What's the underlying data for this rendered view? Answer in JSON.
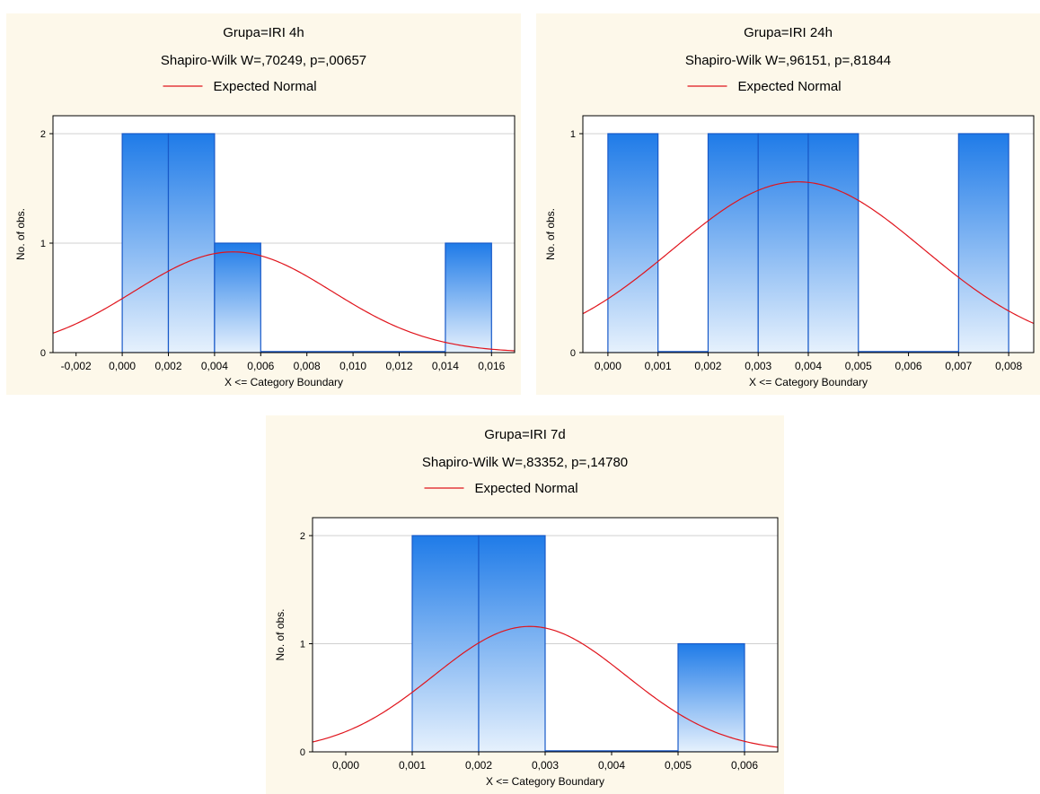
{
  "colors": {
    "panel_bg": "#fdf8ea",
    "bar_top": "#1f7be8",
    "bar_bottom": "#e6f1fd",
    "bar_stroke": "#1859c8",
    "curve": "#e0141c",
    "grid": "#d0d0d0"
  },
  "chart_data": [
    {
      "type": "bar",
      "title": "Grupa=IRI 4h",
      "subtitle": "Shapiro-Wilk W=,70249, p=,00657",
      "legend": "Expected Normal",
      "xlabel": "X <= Category Boundary",
      "ylabel": "No. of obs.",
      "xlim": [
        -0.003,
        0.017
      ],
      "ylim": [
        0,
        2
      ],
      "xticks": [
        -0.002,
        0.0,
        0.002,
        0.004,
        0.006,
        0.008,
        0.01,
        0.012,
        0.014,
        0.016
      ],
      "xtick_labels": [
        "-0,002",
        "0,000",
        "0,002",
        "0,004",
        "0,006",
        "0,008",
        "0,010",
        "0,012",
        "0,014",
        "0,016"
      ],
      "yticks": [
        0,
        1,
        2
      ],
      "ytick_labels": [
        "0",
        "1",
        "2"
      ],
      "bin_edges": [
        0.0,
        0.002,
        0.004,
        0.006,
        0.008,
        0.01,
        0.012,
        0.014,
        0.016
      ],
      "counts": [
        2,
        2,
        1,
        0,
        0,
        0,
        0,
        1
      ],
      "normal_curve": {
        "mean": 0.0048,
        "sd": 0.0043,
        "peak": 0.92
      }
    },
    {
      "type": "bar",
      "title": "Grupa=IRI 24h",
      "subtitle": "Shapiro-Wilk W=,96151, p=,81844",
      "legend": "Expected Normal",
      "xlabel": "X <= Category Boundary",
      "ylabel": "No. of obs.",
      "xlim": [
        -0.0005,
        0.0085
      ],
      "ylim": [
        0,
        1
      ],
      "xticks": [
        0.0,
        0.001,
        0.002,
        0.003,
        0.004,
        0.005,
        0.006,
        0.007,
        0.008
      ],
      "xtick_labels": [
        "0,000",
        "0,001",
        "0,002",
        "0,003",
        "0,004",
        "0,005",
        "0,006",
        "0,007",
        "0,008"
      ],
      "yticks": [
        0,
        1
      ],
      "ytick_labels": [
        "0",
        "1"
      ],
      "bin_edges": [
        0.0,
        0.001,
        0.002,
        0.003,
        0.004,
        0.005,
        0.006,
        0.007,
        0.008
      ],
      "counts": [
        1,
        0,
        1,
        1,
        1,
        0,
        0,
        1
      ],
      "normal_curve": {
        "mean": 0.0038,
        "sd": 0.0025,
        "peak": 0.78
      }
    },
    {
      "type": "bar",
      "title": "Grupa=IRI 7d",
      "subtitle": "Shapiro-Wilk W=,83352, p=,14780",
      "legend": "Expected Normal",
      "xlabel": "X <= Category Boundary",
      "ylabel": "No. of obs.",
      "xlim": [
        -0.0005,
        0.0065
      ],
      "ylim": [
        0,
        2
      ],
      "xticks": [
        0.0,
        0.001,
        0.002,
        0.003,
        0.004,
        0.005,
        0.006
      ],
      "xtick_labels": [
        "0,000",
        "0,001",
        "0,002",
        "0,003",
        "0,004",
        "0,005",
        "0,006"
      ],
      "yticks": [
        0,
        1,
        2
      ],
      "ytick_labels": [
        "0",
        "1",
        "2"
      ],
      "bin_edges": [
        0.001,
        0.002,
        0.003,
        0.004,
        0.005,
        0.006
      ],
      "counts": [
        2,
        2,
        0,
        0,
        1
      ],
      "normal_curve": {
        "mean": 0.00277,
        "sd": 0.00145,
        "peak": 1.16
      }
    }
  ]
}
